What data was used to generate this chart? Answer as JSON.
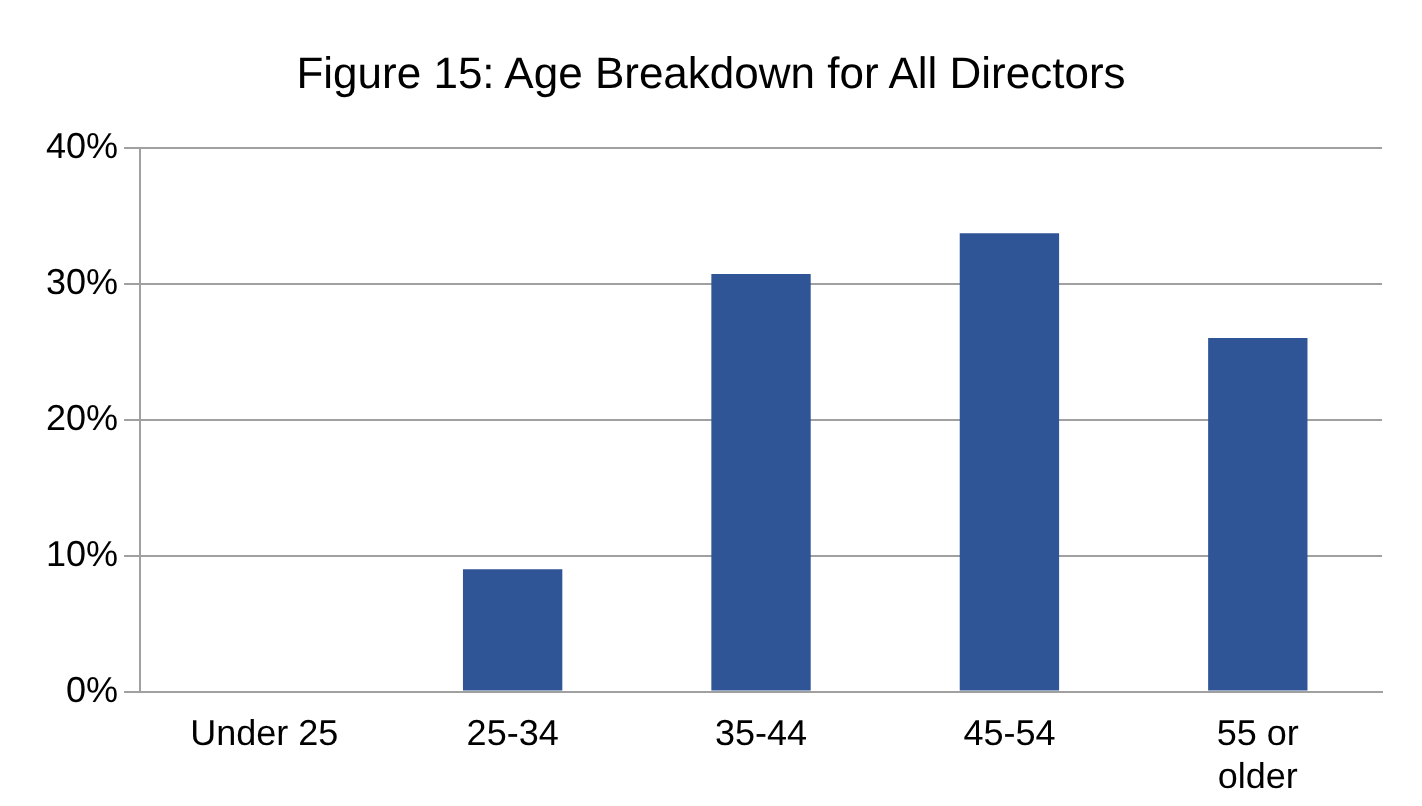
{
  "chart_data": {
    "type": "bar",
    "title": "Figure 15: Age Breakdown for All Directors",
    "categories": [
      "Under 25",
      "25-34",
      "35-44",
      "45-54",
      "55 or older"
    ],
    "values": [
      0,
      9,
      30.7,
      33.7,
      26
    ],
    "color": "#2f5597",
    "ylim": [
      0,
      40
    ],
    "yticks": [
      {
        "value": 0,
        "label": "0%"
      },
      {
        "value": 10,
        "label": "10%"
      },
      {
        "value": 20,
        "label": "20%"
      },
      {
        "value": 30,
        "label": "30%"
      },
      {
        "value": 40,
        "label": "40%"
      }
    ],
    "grid": "y"
  }
}
